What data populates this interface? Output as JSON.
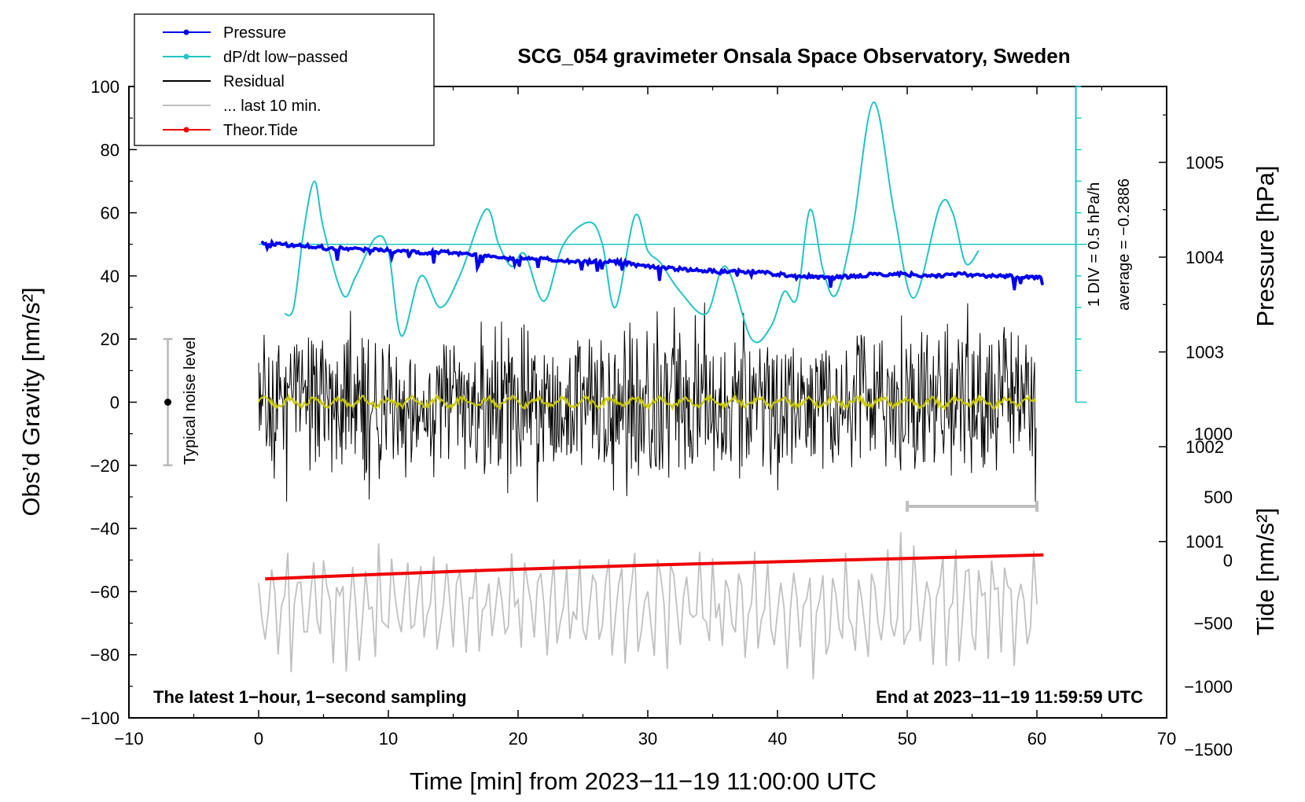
{
  "chart_data": {
    "type": "line",
    "title": "SCG_054 gravimeter Onsala Space Observatory, Sweden",
    "xlabel": "Time [min] from 2023−11−19 11:00:00 UTC",
    "ylabel_left": "Obs’d Gravity [nm/s²]",
    "ylabel_right_pressure": "Pressure [hPa]",
    "ylabel_right_tide": "Tide [nm/s²]",
    "xlim": [
      -10,
      70
    ],
    "ylim_left": [
      -100,
      100
    ],
    "x_ticks": [
      "−10",
      "0",
      "10",
      "20",
      "30",
      "40",
      "50",
      "60",
      "70"
    ],
    "y_ticks_left": [
      "100",
      "80",
      "60",
      "40",
      "20",
      "0",
      "−20",
      "−40",
      "−60",
      "−80",
      "−100"
    ],
    "pressure_axis": {
      "ticks": [
        "1005",
        "1004",
        "1003",
        "1002",
        "1001"
      ],
      "tick_values": [
        1005,
        1004,
        1003,
        1002,
        1001
      ],
      "map": {
        "value_at_gravity_100": 1005.8,
        "hPa_per_nms2": 0.0333
      }
    },
    "tide_axis": {
      "ticks": [
        "1000",
        "500",
        "0",
        "−500",
        "−1000",
        "−1500"
      ],
      "tick_values": [
        1000,
        500,
        0,
        -500,
        -1000,
        -1500
      ],
      "map": {
        "gravity_at_0": -50,
        "nms2_per_gravity_unit": 25
      }
    },
    "legend": {
      "position": "top-left",
      "entries": [
        {
          "label": "Pressure",
          "color": "#0000ee",
          "style": "line+dot"
        },
        {
          "label": "dP/dt low−passed",
          "color": "#22c4c4",
          "style": "line+dot"
        },
        {
          "label": "Residual",
          "color": "#000000",
          "style": "line"
        },
        {
          "label": "... last 10 min.",
          "color": "#c0c0c0",
          "style": "line"
        },
        {
          "label": "Theor.Tide",
          "color": "#ee0000",
          "style": "line+dot"
        }
      ]
    },
    "noise_bar": {
      "label": "Typical noise level",
      "x": -7,
      "center": 0,
      "half_range": 20
    },
    "dpdt_scale": {
      "label1": "1 DIV = 0.5 hPa/h",
      "label2": "average = −0.2886",
      "x": 63,
      "y_bottom": 0,
      "y_top": 100,
      "div": 10,
      "reference_level": 50
    },
    "last10_bar": {
      "x_start": 50,
      "x_end": 60,
      "level": -33
    },
    "annotations": {
      "left": "The latest 1−hour, 1−second sampling",
      "right": "End at 2023−11−19 11:59:59 UTC"
    },
    "series": [
      {
        "name": "Pressure",
        "units": "hPa",
        "x": [
          0.3,
          2,
          5,
          8,
          10,
          12,
          15,
          18,
          20,
          22,
          25,
          28,
          30,
          32,
          35,
          38,
          40,
          42,
          44,
          46,
          48,
          50,
          52,
          54,
          56,
          58,
          60.5
        ],
        "values": [
          1004.15,
          1004.13,
          1004.1,
          1004.08,
          1004.07,
          1004.05,
          1004.05,
          1004.0,
          1003.98,
          1003.98,
          1003.95,
          1003.95,
          1003.9,
          1003.88,
          1003.85,
          1003.85,
          1003.82,
          1003.8,
          1003.78,
          1003.8,
          1003.82,
          1003.82,
          1003.8,
          1003.82,
          1003.8,
          1003.8,
          1003.78
        ]
      },
      {
        "name": "dP/dt low−passed",
        "units": "plotted in gravity-axis units",
        "x": [
          2,
          2.7,
          3.5,
          4.3,
          5,
          6.5,
          7.5,
          9,
          10,
          11,
          12.5,
          14,
          15.5,
          17.5,
          18.5,
          19.5,
          20.5,
          22,
          23.5,
          25.5,
          26.5,
          27.5,
          29,
          30,
          31,
          32.5,
          34.5,
          36,
          38,
          39.5,
          40.5,
          41.5,
          42.5,
          43.5,
          44.5,
          45.8,
          47.4,
          49,
          50.5,
          52.5,
          53.5,
          54.5,
          55.5
        ],
        "values": [
          28,
          30,
          55,
          70,
          55,
          34,
          40,
          52,
          48,
          21,
          40,
          30,
          40,
          61,
          50,
          43,
          47,
          32,
          50,
          57,
          50,
          30,
          59,
          48,
          44,
          35,
          28,
          43,
          20,
          24,
          35,
          33,
          61,
          42,
          34,
          55,
          95,
          60,
          33,
          62,
          60,
          44,
          48
        ]
      },
      {
        "name": "Residual",
        "units": "nm/s²",
        "x_range": [
          0,
          60
        ],
        "amplitude_typical": 20,
        "values_extreme": [
          32,
          -32
        ]
      },
      {
        "name": "... last 10 min.",
        "units": "plotted shifted, gravity-axis units",
        "x_range": [
          0,
          60
        ],
        "center": -65,
        "amplitude_typical": 15
      },
      {
        "name": "Theor.Tide",
        "units": "nm/s² (tide axis)",
        "x": [
          0.5,
          15,
          30,
          45,
          60.5
        ],
        "values": [
          -150,
          -90,
          -40,
          0,
          40
        ]
      }
    ]
  }
}
